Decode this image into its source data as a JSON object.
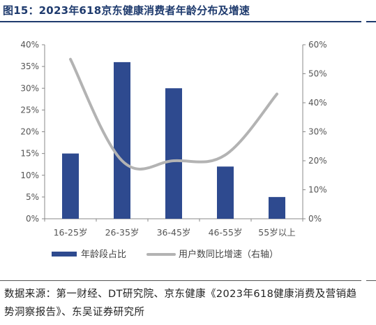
{
  "header": {
    "title": "图15：2023年618京东健康消费者年龄分布及增速"
  },
  "chart_data": {
    "type": "bar+line",
    "categories": [
      "16-25岁",
      "26-35岁",
      "36-45岁",
      "46-55岁",
      "55岁以上"
    ],
    "series": [
      {
        "name": "年龄段占比",
        "type": "bar",
        "axis": "left",
        "values": [
          15,
          36,
          30,
          12,
          5
        ],
        "color": "#2e4a8f"
      },
      {
        "name": "用户数同比增速（右轴）",
        "type": "line",
        "axis": "right",
        "values": [
          55,
          20,
          20,
          22,
          43
        ],
        "color": "#b3b3b3"
      }
    ],
    "y_left": {
      "min": 0,
      "max": 40,
      "step": 5,
      "ticks": [
        "0%",
        "5%",
        "10%",
        "15%",
        "20%",
        "25%",
        "30%",
        "35%",
        "40%"
      ]
    },
    "y_right": {
      "min": 0,
      "max": 60,
      "step": 10,
      "ticks": [
        "0%",
        "10%",
        "20%",
        "30%",
        "40%",
        "50%",
        "60%"
      ]
    },
    "grid": false,
    "legend": "bottom"
  },
  "footer": {
    "source": "数据来源：第一财经、DT研究院、京东健康《2023年618健康消费及营销趋势洞察报告》、东吴证券研究所"
  }
}
